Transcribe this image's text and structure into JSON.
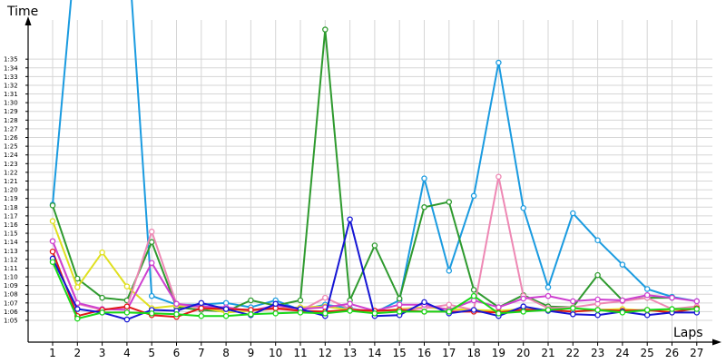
{
  "chart_data": {
    "type": "line",
    "ylabel": "Time",
    "xlabel": "Laps",
    "x": [
      1,
      2,
      3,
      4,
      5,
      6,
      7,
      8,
      9,
      10,
      11,
      12,
      13,
      14,
      15,
      16,
      17,
      18,
      19,
      20,
      21,
      22,
      23,
      24,
      25,
      26,
      27
    ],
    "yticks": [
      65,
      66,
      67,
      68,
      69,
      70,
      71,
      72,
      73,
      74,
      75,
      76,
      77,
      78,
      79,
      80,
      81,
      82,
      83,
      84,
      85,
      86,
      87,
      88,
      89,
      90,
      91,
      92,
      93,
      94,
      95
    ],
    "ytick_labels": [
      "1:05",
      "1:06",
      "1:07",
      "1:08",
      "1:09",
      "1:10",
      "1:11",
      "1:12",
      "1:13",
      "1:14",
      "1:15",
      "1:16",
      "1:17",
      "1:18",
      "1:19",
      "1:20",
      "1:21",
      "1:22",
      "1:23",
      "1:24",
      "1:25",
      "1:26",
      "1:27",
      "1:28",
      "1:29",
      "1:30",
      "1:31",
      "1:32",
      "1:33",
      "1:34",
      "1:35"
    ],
    "ylim": [
      62.5,
      99.5
    ],
    "grid": true,
    "series": [
      {
        "color": "#1a9be0",
        "values": [
          78.3,
          110,
          null,
          110,
          67.8,
          66.8,
          66.8,
          67,
          66.5,
          67.3,
          66.2,
          66.8,
          66.4,
          65.9,
          67.3,
          81.3,
          70.7,
          79.3,
          94.6,
          77.9,
          68.8,
          77.3,
          74.2,
          71.4,
          68.6,
          67.7,
          67.2
        ]
      },
      {
        "color": "#2e9a2e",
        "values": [
          78.2,
          69.8,
          67.6,
          67.3,
          74,
          66.5,
          66.2,
          66,
          67.3,
          66.7,
          67.3,
          98.4,
          67.3,
          73.6,
          67.5,
          78,
          78.6,
          68.5,
          66.5,
          67.9,
          66.6,
          66.5,
          70.2,
          67.3,
          67.6,
          67.6,
          null
        ]
      },
      {
        "color": "#e0e020",
        "values": [
          76.4,
          68.8,
          72.8,
          68.9,
          66.4,
          66.7,
          66.5,
          65.9,
          66.1,
          66.3,
          66.5,
          66.6,
          66.2,
          66,
          66.3,
          66.5,
          66.3,
          66.2,
          66.1,
          66.3,
          66.2,
          66,
          66.2,
          66.3,
          66.1,
          66.2,
          66.3
        ]
      },
      {
        "color": "#ee88b4",
        "values": [
          74.1,
          66.9,
          66.2,
          66.5,
          75.2,
          66.9,
          66.4,
          66.3,
          66.2,
          66.3,
          66.1,
          67.6,
          66.3,
          66.1,
          66.2,
          66.4,
          66.8,
          66.2,
          81.5,
          67.8,
          66.4,
          66.5,
          66.9,
          67.2,
          67.6,
          66.3,
          66.6
        ]
      },
      {
        "color": "#ce40d0",
        "values": [
          74.1,
          67,
          66.3,
          66.2,
          71.6,
          66.9,
          66.6,
          66.5,
          66.1,
          66.7,
          66.3,
          66.5,
          66.9,
          66.1,
          66.8,
          66.8,
          66.2,
          67.3,
          66.5,
          67.5,
          67.8,
          67.2,
          67.4,
          67.3,
          67.9,
          67.6,
          67.2
        ]
      },
      {
        "color": "#e01818",
        "values": [
          72.9,
          65.5,
          66.2,
          66.6,
          65.6,
          65.4,
          66.4,
          66.3,
          66.2,
          66.4,
          66.1,
          66,
          66.2,
          66.1,
          66.2,
          66,
          66,
          66,
          65.9,
          66.2,
          66.2,
          66,
          66.2,
          66.1,
          66.2,
          65.9,
          66.4
        ]
      },
      {
        "color": "#1515d4",
        "values": [
          72.1,
          66.3,
          65.9,
          65.1,
          66.2,
          66.1,
          67,
          66.3,
          65.6,
          66.9,
          66.3,
          65.5,
          76.6,
          65.5,
          65.6,
          67.1,
          65.8,
          66.2,
          65.5,
          66.6,
          66.1,
          65.7,
          65.6,
          66,
          65.6,
          65.9,
          65.9
        ]
      },
      {
        "color": "#18d818",
        "values": [
          71.7,
          65.2,
          65.9,
          65.9,
          65.8,
          65.7,
          65.5,
          65.5,
          65.7,
          65.8,
          65.9,
          65.8,
          66.1,
          65.8,
          66,
          66,
          66,
          67.8,
          65.8,
          66,
          66.2,
          66.4,
          66.2,
          65.9,
          66.2,
          66.3,
          66.3
        ]
      }
    ]
  }
}
